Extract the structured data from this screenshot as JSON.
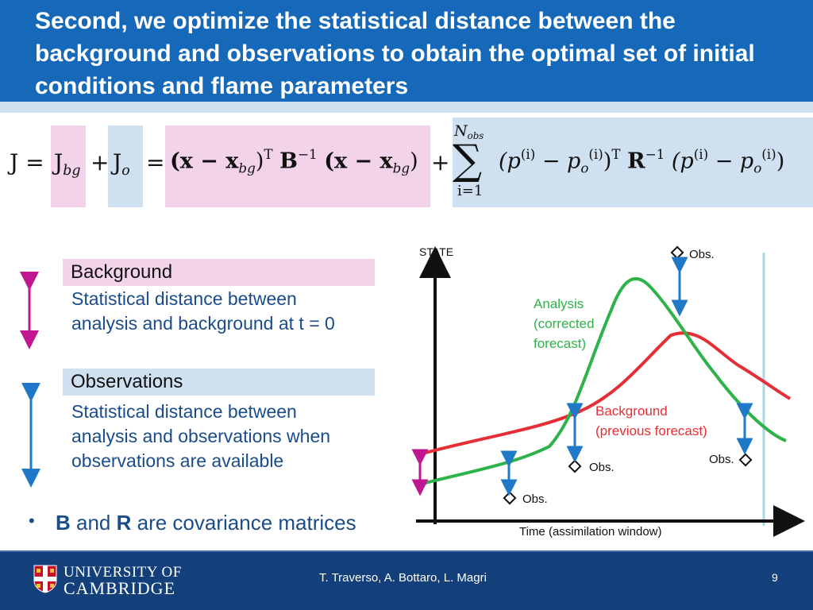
{
  "slide": {
    "title": "Second, we optimize the statistical distance between the background and observations to obtain the optimal set of initial conditions and flame parameters",
    "page_number": "9"
  },
  "equation": {
    "J": "J",
    "eq1": "=",
    "Jbg_main": "J",
    "Jbg_sub": "bg",
    "plus1": "+",
    "Jo_main": "J",
    "Jo_sub": "o",
    "eq2": "=",
    "bg_term_lead": "(x − x",
    "bg_term_sub": "bg",
    "bg_term_close": ")",
    "T1": "T",
    "B": "B",
    "inv1": "−1",
    "bg_term2_lead": "(x − x",
    "bg_term2_sub": "bg",
    "bg_term2_close": ")",
    "plus2": "+",
    "sum_upper": "N",
    "sum_upper_sub": "obs",
    "sum_symbol": "∑",
    "sum_lower": "i=1",
    "obs_term_open": "(p",
    "obs_term_i": "(i)",
    "obs_term_minus": " − p",
    "obs_term_o": "o",
    "obs_term_i2": "(i)",
    "obs_term_close": ")",
    "T2": "T",
    "R": "R",
    "inv2": "−1",
    "obs_term2_open": "(p",
    "obs_term2_i": "(i)",
    "obs_term2_minus": " − p",
    "obs_term2_o": "o",
    "obs_term2_i2": "(i)",
    "obs_term2_close": ")"
  },
  "boxes": {
    "background": {
      "label": "Background",
      "line1": "Statistical distance between",
      "line2": "analysis and background at t = 0"
    },
    "observations": {
      "label": "Observations",
      "line1": "Statistical distance between",
      "line2": "analysis and observations when",
      "line3": "observations are available"
    }
  },
  "bullet": {
    "b": "B",
    "and": " and ",
    "r": "R",
    "rest": " are covariance matrices"
  },
  "diagram": {
    "y_label": "STATE",
    "x_label": "Time (assimilation window)",
    "analysis_l1": "Analysis",
    "analysis_l2": "(corrected",
    "analysis_l3": "forecast)",
    "background_l1": "Background",
    "background_l2": "(previous forecast)",
    "obs_label": "Obs.",
    "colors": {
      "analysis": "#2eb24a",
      "background": "#e52e35",
      "arrow_blue": "#1f78c8",
      "arrow_magenta": "#c0168f",
      "window_line": "#a9d8e0"
    }
  },
  "footer": {
    "authors": "T. Traverso, A. Bottaro, L. Magri",
    "university_l1": "UNIVERSITY OF",
    "university_l2": "CAMBRIDGE"
  },
  "colors": {
    "title_bg": "#1668b8",
    "footer_bg": "#13407a",
    "pink_highlight": "#f2d3ea",
    "blue_highlight": "#cfe0f0",
    "text_blue": "#1a4c8a"
  }
}
